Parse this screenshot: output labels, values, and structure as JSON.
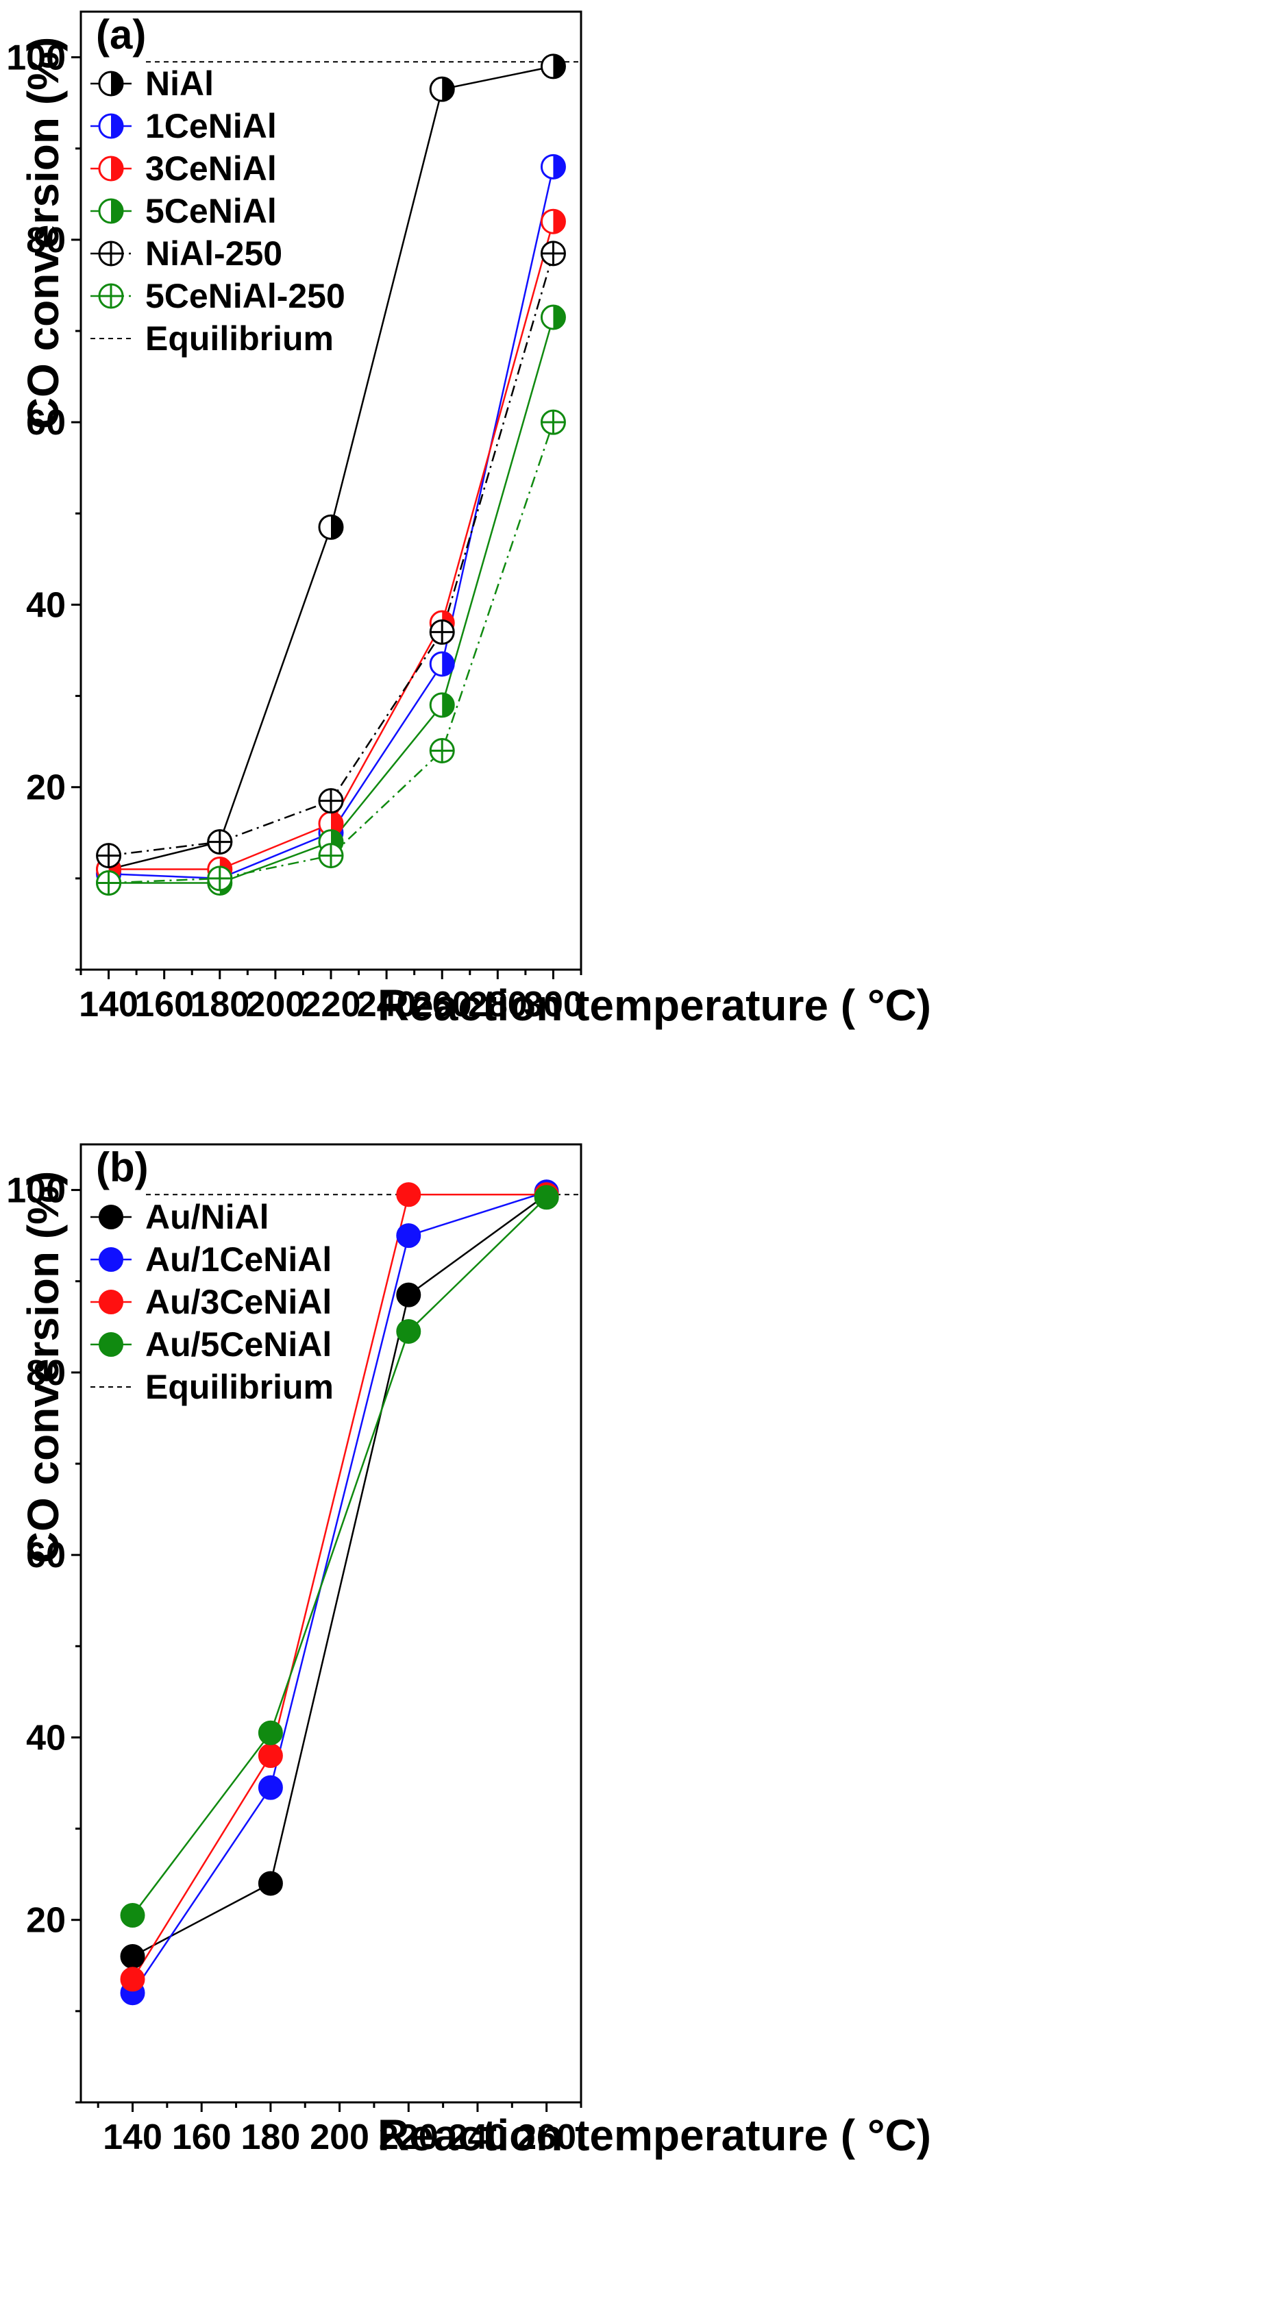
{
  "chart_data": [
    {
      "id": "a",
      "type": "line",
      "panel_label": "(a)",
      "xlabel": "Reaction temperature ( °C)",
      "ylabel": "CO conversion (%)",
      "xlim": [
        130,
        310
      ],
      "ylim": [
        0,
        105
      ],
      "xticks": [
        140,
        160,
        180,
        200,
        220,
        240,
        260,
        280,
        300
      ],
      "yticks": [
        20,
        40,
        60,
        80,
        100
      ],
      "equilibrium": {
        "name": "Equilibrium",
        "value": 99.5,
        "color": "#000000"
      },
      "series": [
        {
          "name": "NiAl",
          "color": "#000000",
          "marker": "half",
          "line": "solid",
          "x": [
            140,
            180,
            220,
            260,
            300
          ],
          "values": [
            11,
            14,
            48.5,
            96.5,
            99
          ]
        },
        {
          "name": "1CeNiAl",
          "color": "#1010ff",
          "marker": "half",
          "line": "solid",
          "x": [
            140,
            180,
            220,
            260,
            300
          ],
          "values": [
            10.5,
            10,
            15,
            33.5,
            88
          ]
        },
        {
          "name": "3CeNiAl",
          "color": "#ff1010",
          "marker": "half",
          "line": "solid",
          "x": [
            140,
            180,
            220,
            260,
            300
          ],
          "values": [
            11,
            11,
            16,
            38,
            82
          ]
        },
        {
          "name": "5CeNiAl",
          "color": "#108a10",
          "marker": "half",
          "line": "solid",
          "x": [
            140,
            180,
            220,
            260,
            300
          ],
          "values": [
            9.5,
            9.5,
            14,
            29,
            71.5
          ]
        },
        {
          "name": "NiAl-250",
          "color": "#000000",
          "marker": "cross",
          "line": "dashdot",
          "x": [
            140,
            180,
            220,
            260,
            300
          ],
          "values": [
            12.5,
            14,
            18.5,
            37,
            78.5
          ]
        },
        {
          "name": "5CeNiAl-250",
          "color": "#108a10",
          "marker": "cross",
          "line": "dashdot",
          "x": [
            140,
            180,
            220,
            260,
            300
          ],
          "values": [
            9.5,
            10,
            12.5,
            24,
            60
          ]
        }
      ]
    },
    {
      "id": "b",
      "type": "line",
      "panel_label": "(b)",
      "xlabel": "Reaction temperature ( °C)",
      "ylabel": "CO conversion (%)",
      "xlim": [
        125,
        270
      ],
      "ylim": [
        0,
        105
      ],
      "xticks": [
        140,
        160,
        180,
        200,
        220,
        240,
        260
      ],
      "yticks": [
        20,
        40,
        60,
        80,
        100
      ],
      "equilibrium": {
        "name": "Equilibrium",
        "value": 99.5,
        "color": "#000000"
      },
      "series": [
        {
          "name": "Au/NiAl",
          "color": "#000000",
          "marker": "full",
          "line": "solid",
          "x": [
            140,
            180,
            220,
            260
          ],
          "values": [
            16,
            24,
            88.5,
            99.5
          ]
        },
        {
          "name": "Au/1CeNiAl",
          "color": "#1010ff",
          "marker": "full",
          "line": "solid",
          "x": [
            140,
            180,
            220,
            260
          ],
          "values": [
            12,
            34.5,
            95,
            99.8
          ]
        },
        {
          "name": "Au/3CeNiAl",
          "color": "#ff1010",
          "marker": "full",
          "line": "solid",
          "x": [
            140,
            180,
            220,
            260
          ],
          "values": [
            13.5,
            38,
            99.5,
            99.5
          ]
        },
        {
          "name": "Au/5CeNiAl",
          "color": "#108a10",
          "marker": "full",
          "line": "solid",
          "x": [
            140,
            180,
            220,
            260
          ],
          "values": [
            20.5,
            40.5,
            84.5,
            99.2
          ]
        }
      ]
    }
  ]
}
